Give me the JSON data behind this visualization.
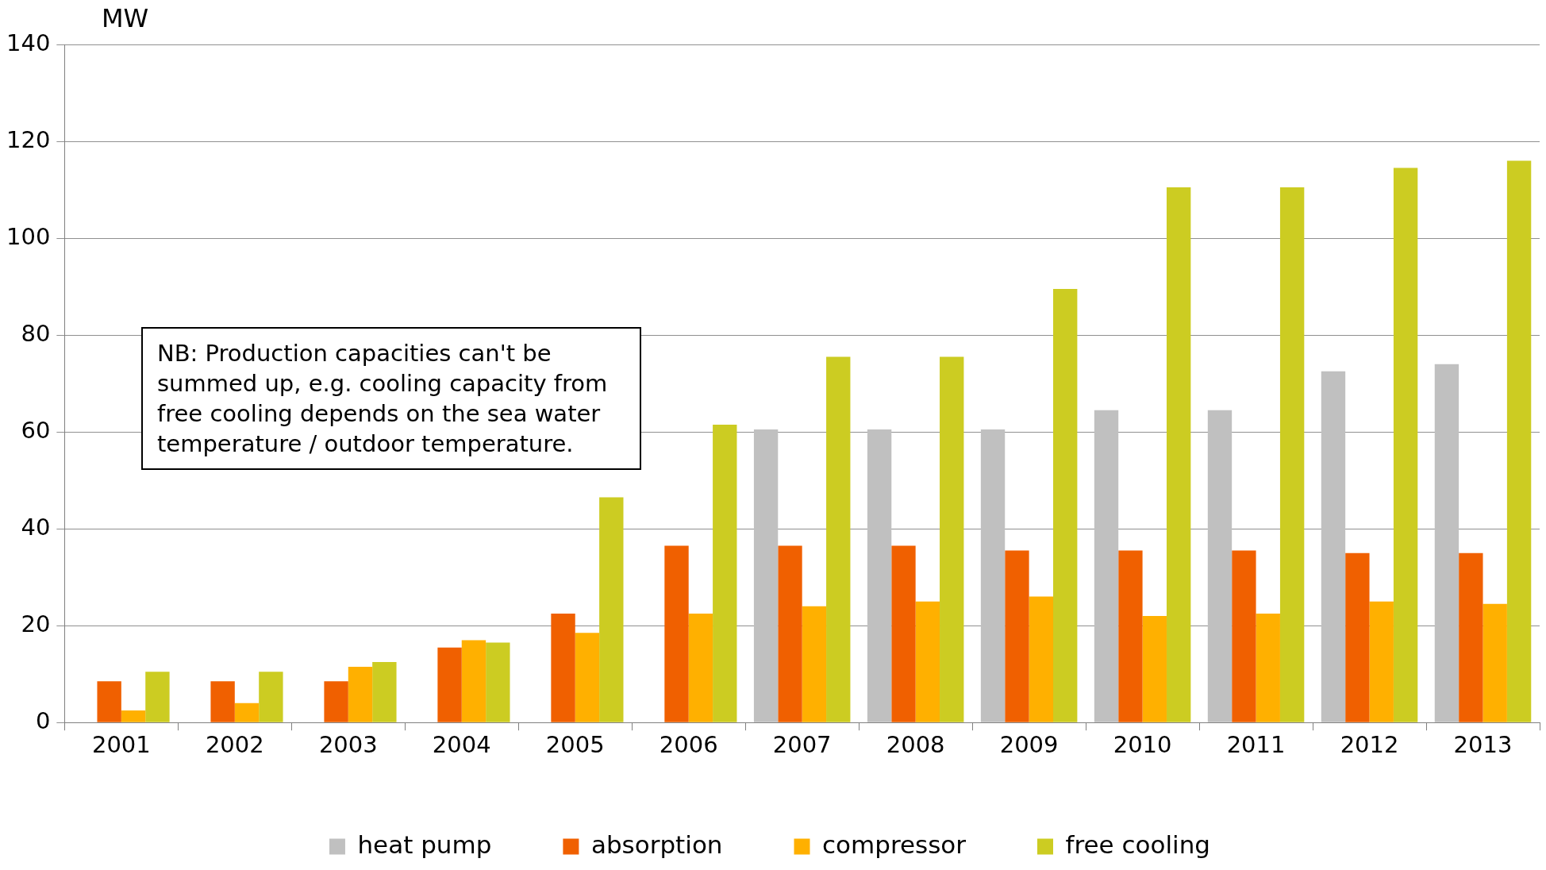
{
  "chart_data": {
    "type": "bar",
    "ylabel": "MW",
    "categories": [
      "2001",
      "2002",
      "2003",
      "2004",
      "2005",
      "2006",
      "2007",
      "2008",
      "2009",
      "2010",
      "2011",
      "2012",
      "2013"
    ],
    "series": [
      {
        "name": "heat pump",
        "color": "#c0c0c0",
        "values": [
          null,
          null,
          null,
          null,
          null,
          null,
          60.5,
          60.5,
          60.5,
          64.5,
          64.5,
          72.5,
          74
        ]
      },
      {
        "name": "absorption",
        "color": "#f06000",
        "values": [
          8.5,
          8.5,
          8.5,
          15.5,
          22.5,
          36.5,
          36.5,
          36.5,
          35.5,
          35.5,
          35.5,
          35,
          35
        ]
      },
      {
        "name": "compressor",
        "color": "#ffb000",
        "values": [
          2.5,
          4,
          11.5,
          17,
          18.5,
          22.5,
          24,
          25,
          26,
          22,
          22.5,
          25,
          24.5
        ]
      },
      {
        "name": "free cooling",
        "color": "#cccc22",
        "values": [
          10.5,
          10.5,
          12.5,
          16.5,
          46.5,
          61.5,
          75.5,
          75.5,
          89.5,
          110.5,
          110.5,
          114.5,
          116
        ]
      }
    ],
    "ylim": [
      0,
      140
    ],
    "yticks": [
      0,
      20,
      40,
      60,
      80,
      100,
      120,
      140
    ],
    "grid": "y",
    "legend": "bottom",
    "annotations": [
      "NB: Production capacities can't be summed up, e.g. cooling capacity from free cooling depends on the sea water temperature / outdoor temperature."
    ]
  }
}
